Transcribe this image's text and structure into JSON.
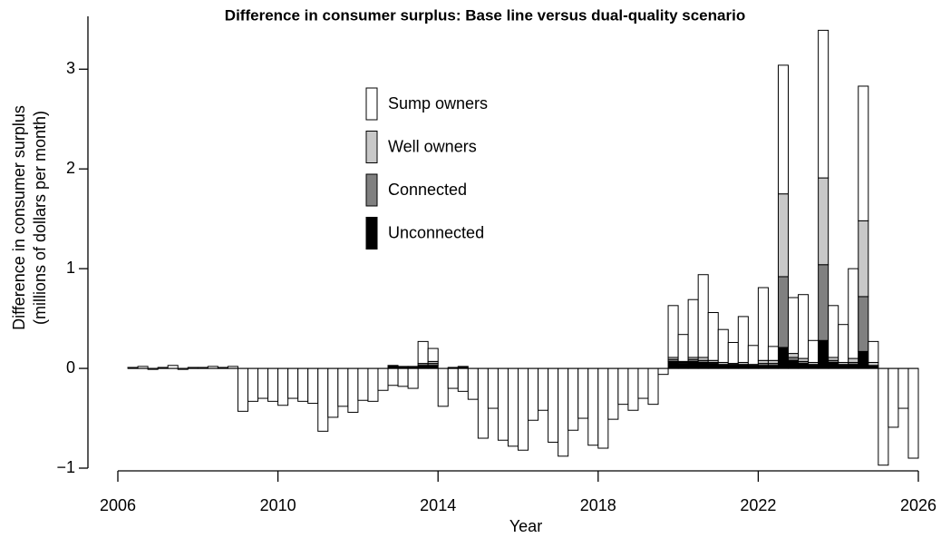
{
  "chart_data": {
    "type": "stacked_bar",
    "title": "Difference in consumer surplus: Base line versus dual-quality scenario",
    "xlabel": "Year",
    "ylabel": [
      "Difference in consumer surplus",
      "(millions of dollars per month)"
    ],
    "xlim": [
      2006,
      2026
    ],
    "xticks": [
      2006,
      2010,
      2014,
      2018,
      2022,
      2026
    ],
    "ylim": [
      -1,
      3.53
    ],
    "yticks": [
      {
        "value": -1,
        "label": "−1"
      },
      0,
      1,
      2,
      3
    ],
    "bar_width": 0.25,
    "x": [
      2006.375,
      2006.625,
      2006.875,
      2007.125,
      2007.375,
      2007.625,
      2007.875,
      2008.125,
      2008.375,
      2008.625,
      2008.875,
      2009.125,
      2009.375,
      2009.625,
      2009.875,
      2010.125,
      2010.375,
      2010.625,
      2010.875,
      2011.125,
      2011.375,
      2011.625,
      2011.875,
      2012.125,
      2012.375,
      2012.625,
      2012.875,
      2013.125,
      2013.375,
      2013.625,
      2013.875,
      2014.125,
      2014.375,
      2014.625,
      2014.875,
      2015.125,
      2015.375,
      2015.625,
      2015.875,
      2016.125,
      2016.375,
      2016.625,
      2016.875,
      2017.125,
      2017.375,
      2017.625,
      2017.875,
      2018.125,
      2018.375,
      2018.625,
      2018.875,
      2019.125,
      2019.375,
      2019.625,
      2019.875,
      2020.125,
      2020.375,
      2020.625,
      2020.875,
      2021.125,
      2021.375,
      2021.625,
      2021.875,
      2022.125,
      2022.375,
      2022.625,
      2022.875,
      2023.125,
      2023.375,
      2023.625,
      2023.875,
      2024.125,
      2024.375,
      2024.625,
      2024.875,
      2025.125,
      2025.375,
      2025.625,
      2025.875
    ],
    "series": [
      {
        "name": "Sump owners",
        "color": "#ffffff",
        "values": [
          0.01,
          0.02,
          -0.01,
          0.01,
          0.03,
          -0.01,
          0.01,
          0.01,
          0.02,
          0.01,
          0.02,
          -0.43,
          -0.33,
          -0.3,
          -0.33,
          -0.37,
          -0.3,
          -0.33,
          -0.35,
          -0.63,
          -0.49,
          -0.38,
          -0.44,
          -0.32,
          -0.33,
          -0.22,
          -0.17,
          -0.18,
          -0.2,
          0.22,
          0.13,
          -0.38,
          -0.2,
          -0.23,
          -0.31,
          -0.7,
          -0.4,
          -0.72,
          -0.78,
          -0.82,
          -0.52,
          -0.42,
          -0.74,
          -0.88,
          -0.62,
          -0.5,
          -0.77,
          -0.8,
          -0.51,
          -0.36,
          -0.42,
          -0.3,
          -0.36,
          -0.06,
          0.52,
          0.27,
          0.58,
          0.83,
          0.48,
          0.33,
          0.21,
          0.46,
          0.19,
          0.73,
          0.14,
          1.29,
          0.56,
          0.64,
          0.22,
          1.48,
          0.52,
          0.38,
          0.9,
          1.35,
          0.21,
          -0.97,
          -0.59,
          -0.4,
          -0.9
        ]
      },
      {
        "name": "Well owners",
        "color": "#c8c8c8",
        "values": [
          0,
          0,
          0,
          0,
          0,
          0,
          0,
          0,
          0,
          0,
          0,
          0,
          0,
          0,
          0,
          0,
          0,
          0,
          0,
          0,
          0,
          0,
          0,
          0,
          0,
          0,
          0,
          0,
          0,
          0,
          0.02,
          0,
          0,
          0,
          0,
          0,
          0,
          0,
          0,
          0,
          0,
          0,
          0,
          0,
          0,
          0,
          0,
          0,
          0,
          0,
          0,
          0,
          0,
          0,
          0.02,
          0.01,
          0.02,
          0.03,
          0.02,
          0.02,
          0.01,
          0.02,
          0.01,
          0.03,
          0.03,
          0.83,
          0.04,
          0.03,
          0.02,
          0.87,
          0.03,
          0.02,
          0.04,
          0.76,
          0.03,
          0,
          0,
          0,
          0
        ]
      },
      {
        "name": "Connected",
        "color": "#808080",
        "values": [
          0,
          0,
          0,
          0,
          0,
          0,
          0,
          0,
          0,
          0,
          0,
          0,
          0,
          0,
          0,
          0,
          0,
          0,
          0,
          0,
          0,
          0,
          0,
          0,
          0,
          0,
          0,
          0,
          0,
          0.02,
          0.02,
          0,
          0,
          0,
          0,
          0,
          0,
          0,
          0,
          0,
          0,
          0,
          0,
          0,
          0,
          0,
          0,
          0,
          0,
          0,
          0,
          0,
          0,
          0,
          0.02,
          0.01,
          0.02,
          0.02,
          0.01,
          0.01,
          0.01,
          0.01,
          0.01,
          0.02,
          0.02,
          0.71,
          0.03,
          0.02,
          0.01,
          0.76,
          0.02,
          0.01,
          0.02,
          0.55,
          0.01,
          0,
          0,
          0,
          0
        ]
      },
      {
        "name": "Unconnected",
        "color": "#000000",
        "values": [
          0,
          0,
          0,
          0,
          0,
          0,
          0,
          0,
          0,
          0,
          0,
          0,
          0,
          0,
          0,
          0,
          0,
          0,
          0,
          0,
          0,
          0,
          0,
          0,
          0,
          0,
          0.03,
          0.02,
          0.02,
          0.03,
          0.03,
          0,
          0.01,
          0.02,
          0,
          0,
          0,
          0,
          0,
          0,
          0,
          0,
          0,
          0,
          0,
          0,
          0,
          0,
          0,
          0,
          0,
          0,
          0,
          0,
          0.07,
          0.05,
          0.07,
          0.06,
          0.05,
          0.03,
          0.03,
          0.03,
          0.02,
          0.03,
          0.03,
          0.21,
          0.08,
          0.05,
          0.03,
          0.28,
          0.06,
          0.03,
          0.04,
          0.17,
          0.02,
          0,
          0,
          0,
          0
        ]
      }
    ]
  }
}
